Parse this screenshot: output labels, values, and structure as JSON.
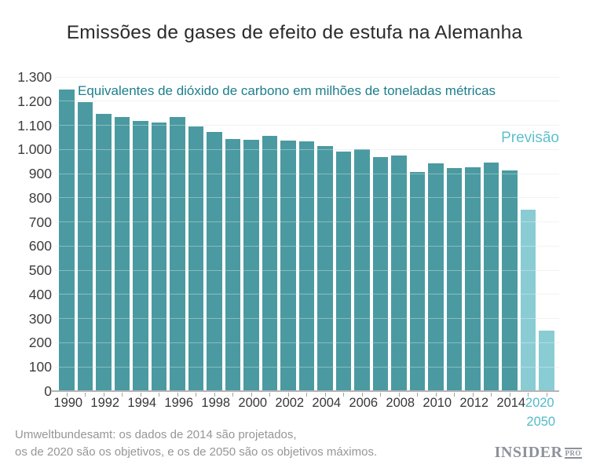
{
  "title": "Emissões de gases de efeito de estufa na Alemanha",
  "subtitle": "Equivalentes de dióxido de carbono em milhões de toneladas métricas",
  "forecast_label": "Previsão",
  "source_note": {
    "line1": "Umweltbundesamt: os dados de 2014 são projetados,",
    "line2": "os de 2020 são os objetivos, e os de 2050 são os objetivos máximos."
  },
  "logo": {
    "name": "INSIDER",
    "suffix": "PRO"
  },
  "colors": {
    "bar": "#4b9aa1",
    "forecast_bar": "#8accd4",
    "subtitle_text": "#1d7e8c",
    "forecast_text": "#5fc0cd",
    "xlabel_forecast_text": "#53bac8",
    "axis_text": "#3c3c3c",
    "grid": "#ececec",
    "axis_line": "#b3b3b3",
    "note_text": "#969696",
    "logo_gray": "#8c929a"
  },
  "chart_data": {
    "type": "bar",
    "title": "Emissões de gases de efeito de estufa na Alemanha",
    "subtitle": "Equivalentes de dióxido de carbono em milhões de toneladas métricas",
    "unit": "milhões de toneladas métricas de CO2-eq",
    "grid": true,
    "ylim": [
      0,
      1300
    ],
    "ytick_step": 100,
    "categories": [
      "1990",
      "1991",
      "1992",
      "1993",
      "1994",
      "1995",
      "1996",
      "1997",
      "1998",
      "1999",
      "2000",
      "2001",
      "2002",
      "2003",
      "2004",
      "2005",
      "2006",
      "2007",
      "2008",
      "2009",
      "2010",
      "2011",
      "2012",
      "2013",
      "2014",
      "2020",
      "2050"
    ],
    "values": [
      1248,
      1196,
      1146,
      1135,
      1119,
      1113,
      1133,
      1096,
      1074,
      1042,
      1039,
      1056,
      1037,
      1034,
      1015,
      992,
      1000,
      967,
      976,
      907,
      942,
      922,
      926,
      945,
      912,
      750,
      250
    ],
    "forecast": [
      false,
      false,
      false,
      false,
      false,
      false,
      false,
      false,
      false,
      false,
      false,
      false,
      false,
      false,
      false,
      false,
      false,
      false,
      false,
      false,
      false,
      false,
      false,
      false,
      false,
      true,
      true
    ],
    "yticks": [
      {
        "value": 0,
        "label": "0"
      },
      {
        "value": 100,
        "label": "100"
      },
      {
        "value": 200,
        "label": "200"
      },
      {
        "value": 300,
        "label": "300"
      },
      {
        "value": 400,
        "label": "400"
      },
      {
        "value": 500,
        "label": "500"
      },
      {
        "value": 600,
        "label": "600"
      },
      {
        "value": 700,
        "label": "700"
      },
      {
        "value": 800,
        "label": "800"
      },
      {
        "value": 900,
        "label": "900"
      },
      {
        "value": 1000,
        "label": "1.000"
      },
      {
        "value": 1100,
        "label": "1.100"
      },
      {
        "value": 1200,
        "label": "1.200"
      },
      {
        "value": 1300,
        "label": "1.300"
      }
    ],
    "xtick_every": 2,
    "legend_position": "none"
  }
}
